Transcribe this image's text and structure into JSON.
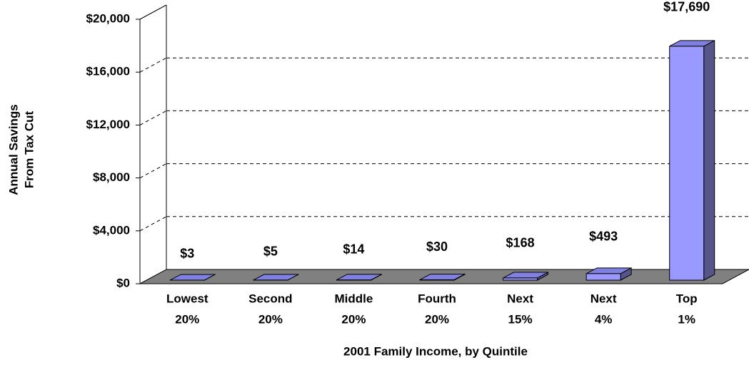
{
  "chart_data": {
    "type": "bar3d",
    "xlabel": "2001 Family Income, by Quintile",
    "ylabel": [
      "Annual Savings",
      "From Tax Cut"
    ],
    "categories": [
      [
        "Lowest",
        "20%"
      ],
      [
        "Second",
        "20%"
      ],
      [
        "Middle",
        "20%"
      ],
      [
        "Fourth",
        "20%"
      ],
      [
        "Next",
        "15%"
      ],
      [
        "Next",
        "4%"
      ],
      [
        "Top",
        "1%"
      ]
    ],
    "values": [
      3,
      5,
      14,
      30,
      168,
      493,
      17690
    ],
    "value_labels": [
      "$3",
      "$5",
      "$14",
      "$30",
      "$168",
      "$493",
      "$17,690"
    ],
    "color": "#9999ff",
    "ylim": [
      0,
      20000
    ],
    "yticks": [
      {
        "value": 0,
        "label": "$0"
      },
      {
        "value": 4000,
        "label": "$4,000"
      },
      {
        "value": 8000,
        "label": "$8,000"
      },
      {
        "value": 12000,
        "label": "$12,000"
      },
      {
        "value": 16000,
        "label": "$16,000"
      },
      {
        "value": 20000,
        "label": "$20,000"
      }
    ],
    "grid": true
  }
}
